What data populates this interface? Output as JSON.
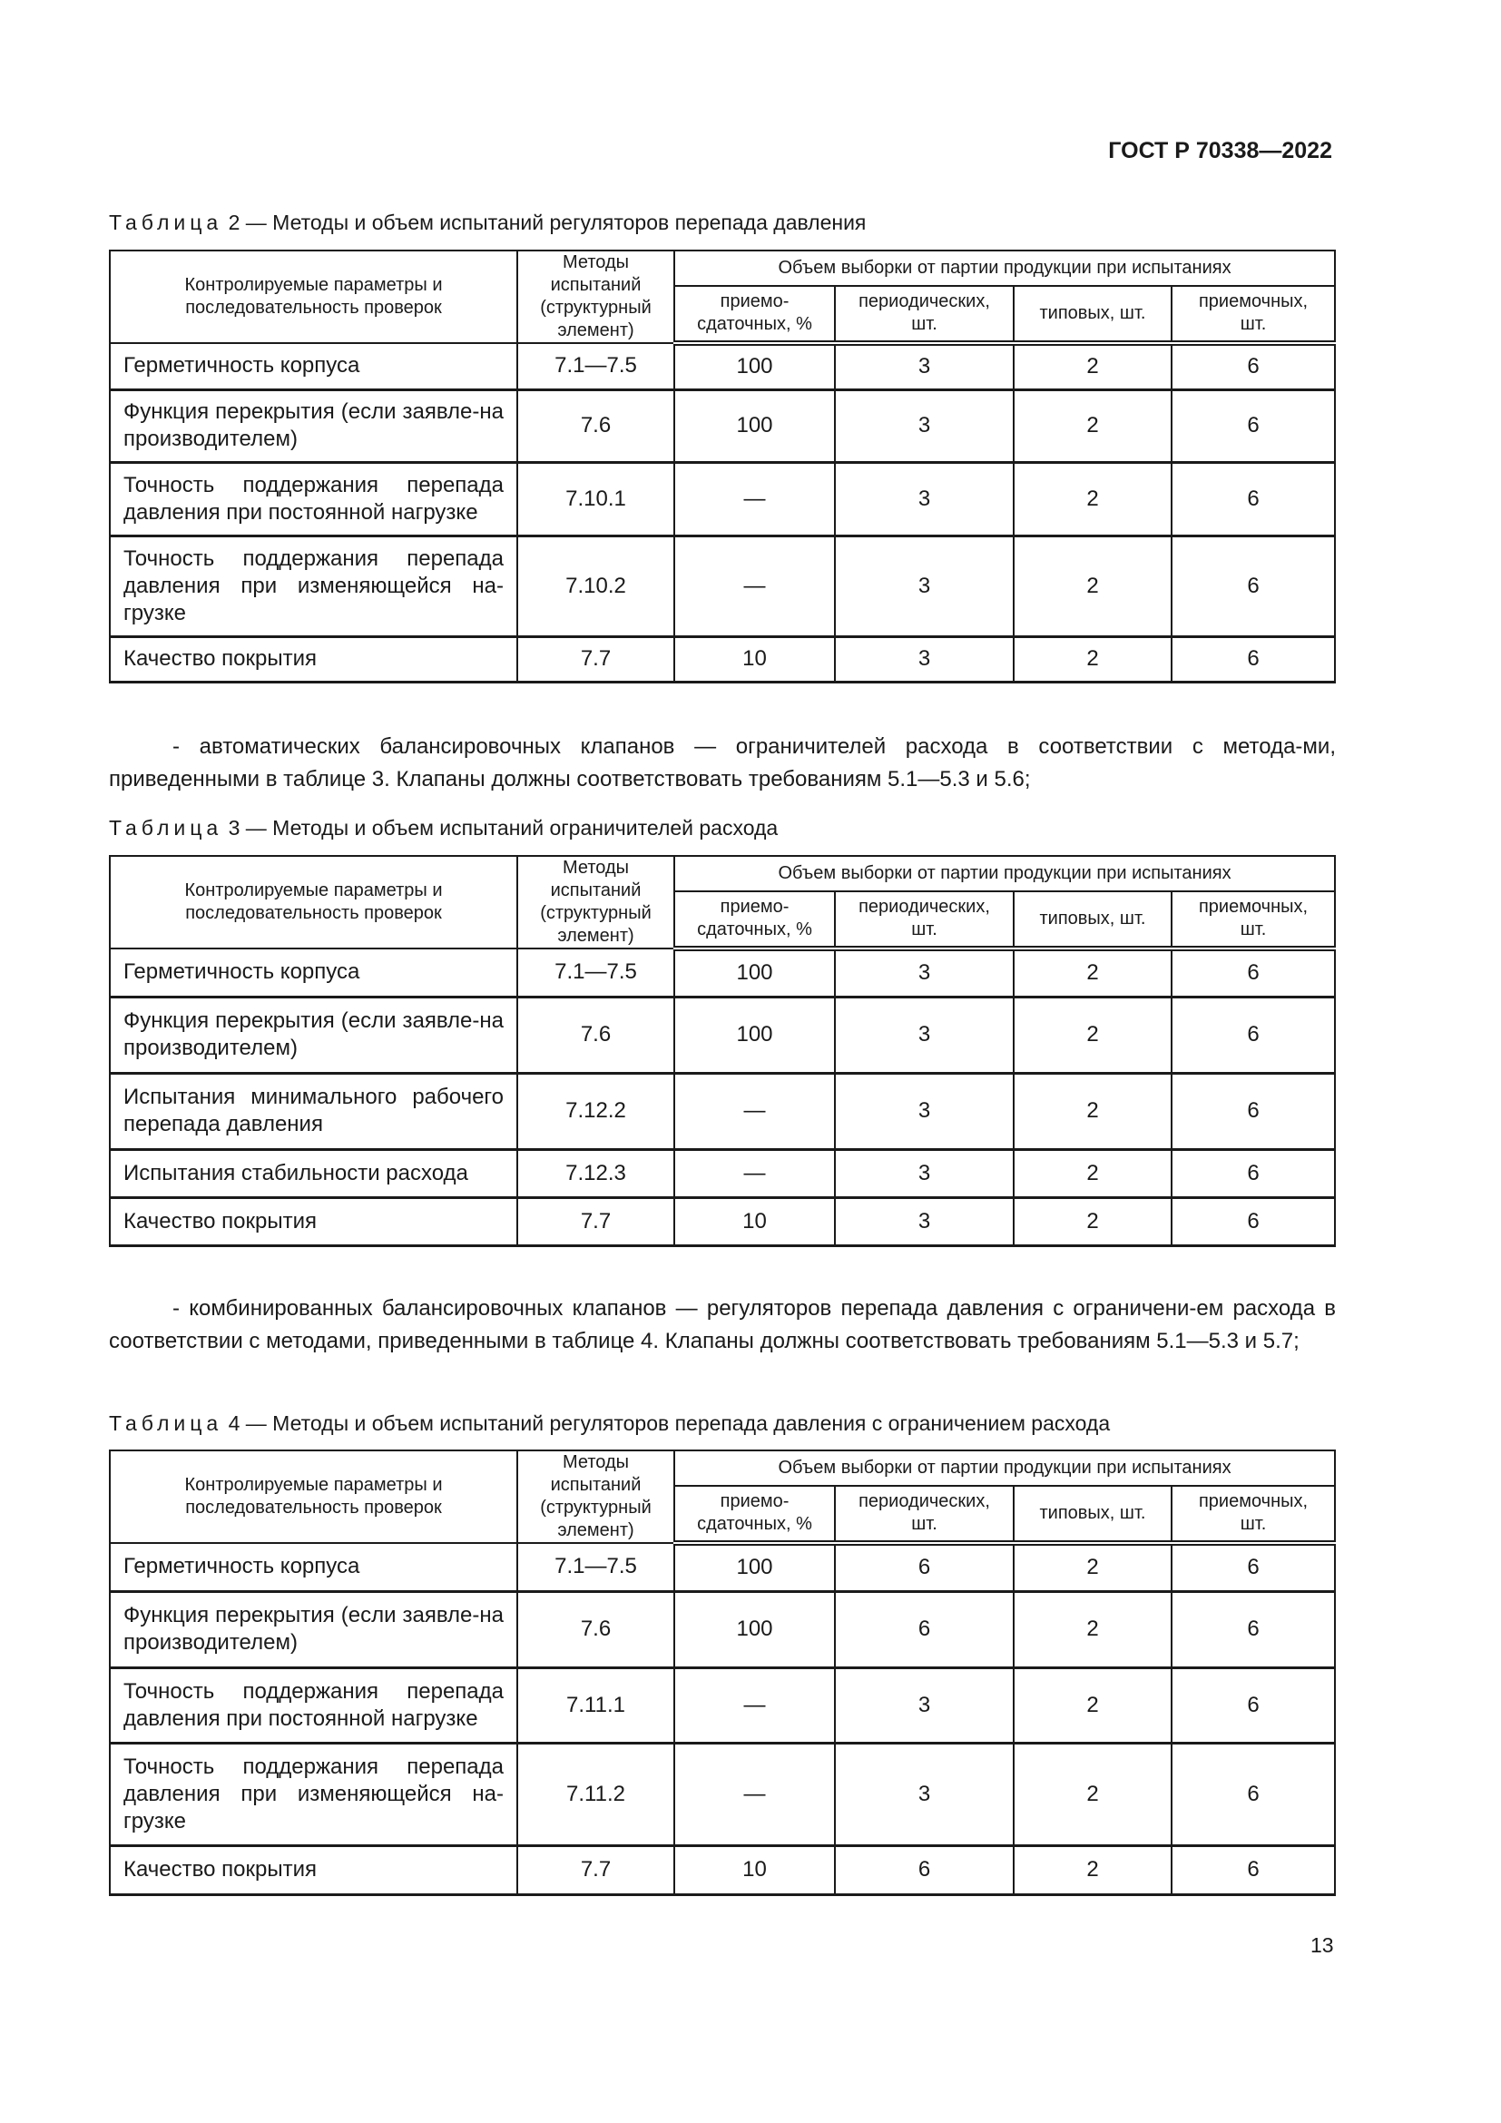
{
  "header": {
    "doc_id": "ГОСТ Р 70338—2022"
  },
  "columns": {
    "param": "Контролируемые параметры и последовательность проверок",
    "method": "Методы испытаний (структурный элемент)",
    "sample_group": "Объем выборки от партии продукции при испытаниях",
    "acceptance": "приемо-сдаточных, %",
    "periodic": "периодических, шт.",
    "type": "типовых, шт.",
    "acceptance_final": "приемочных, шт."
  },
  "tables": [
    {
      "caption_word": "Таблица",
      "caption_rest": " 2 — Методы и объем испытаний регуляторов перепада давления",
      "rows": [
        [
          "Герметичность корпуса",
          "7.1—7.5",
          "100",
          "3",
          "2",
          "6"
        ],
        [
          "Функция перекрытия (если заявле-на производителем)",
          "7.6",
          "100",
          "3",
          "2",
          "6"
        ],
        [
          "Точность поддержания перепада давления при постоянной нагрузке",
          "7.10.1",
          "—",
          "3",
          "2",
          "6"
        ],
        [
          "Точность поддержания перепада давления при изменяющейся на-грузке",
          "7.10.2",
          "—",
          "3",
          "2",
          "6"
        ],
        [
          "Качество покрытия",
          "7.7",
          "10",
          "3",
          "2",
          "6"
        ]
      ]
    },
    {
      "caption_word": "Таблица",
      "caption_rest": " 3 — Методы и объем испытаний ограничителей расхода",
      "rows": [
        [
          "Герметичность корпуса",
          "7.1—7.5",
          "100",
          "3",
          "2",
          "6"
        ],
        [
          "Функция перекрытия (если заявле-на производителем)",
          "7.6",
          "100",
          "3",
          "2",
          "6"
        ],
        [
          "Испытания минимального рабочего перепада давления",
          "7.12.2",
          "—",
          "3",
          "2",
          "6"
        ],
        [
          "Испытания стабильности расхода",
          "7.12.3",
          "—",
          "3",
          "2",
          "6"
        ],
        [
          "Качество покрытия",
          "7.7",
          "10",
          "3",
          "2",
          "6"
        ]
      ]
    },
    {
      "caption_word": "Таблица",
      "caption_rest": " 4 — Методы и объем испытаний регуляторов перепада давления с ограничением расхода",
      "rows": [
        [
          "Герметичность корпуса",
          "7.1—7.5",
          "100",
          "6",
          "2",
          "6"
        ],
        [
          "Функция перекрытия (если заявле-на производителем)",
          "7.6",
          "100",
          "6",
          "2",
          "6"
        ],
        [
          "Точность поддержания перепада давления при постоянной нагрузке",
          "7.11.1",
          "—",
          "3",
          "2",
          "6"
        ],
        [
          "Точность поддержания перепада давления при изменяющейся на-грузке",
          "7.11.2",
          "—",
          "3",
          "2",
          "6"
        ],
        [
          "Качество покрытия",
          "7.7",
          "10",
          "6",
          "2",
          "6"
        ]
      ]
    }
  ],
  "paragraphs": [
    "- автоматических балансировочных клапанов — ограничителей расхода в соответствии с метода-ми, приведенными в таблице 3. Клапаны должны соответствовать требованиям 5.1—5.3 и 5.6;",
    "- комбинированных балансировочных клапанов — регуляторов перепада давления с ограничени-ем расхода в соответствии с методами, приведенными в таблице 4. Клапаны должны соответствовать требованиям 5.1—5.3 и 5.7;"
  ],
  "page_number": "13"
}
